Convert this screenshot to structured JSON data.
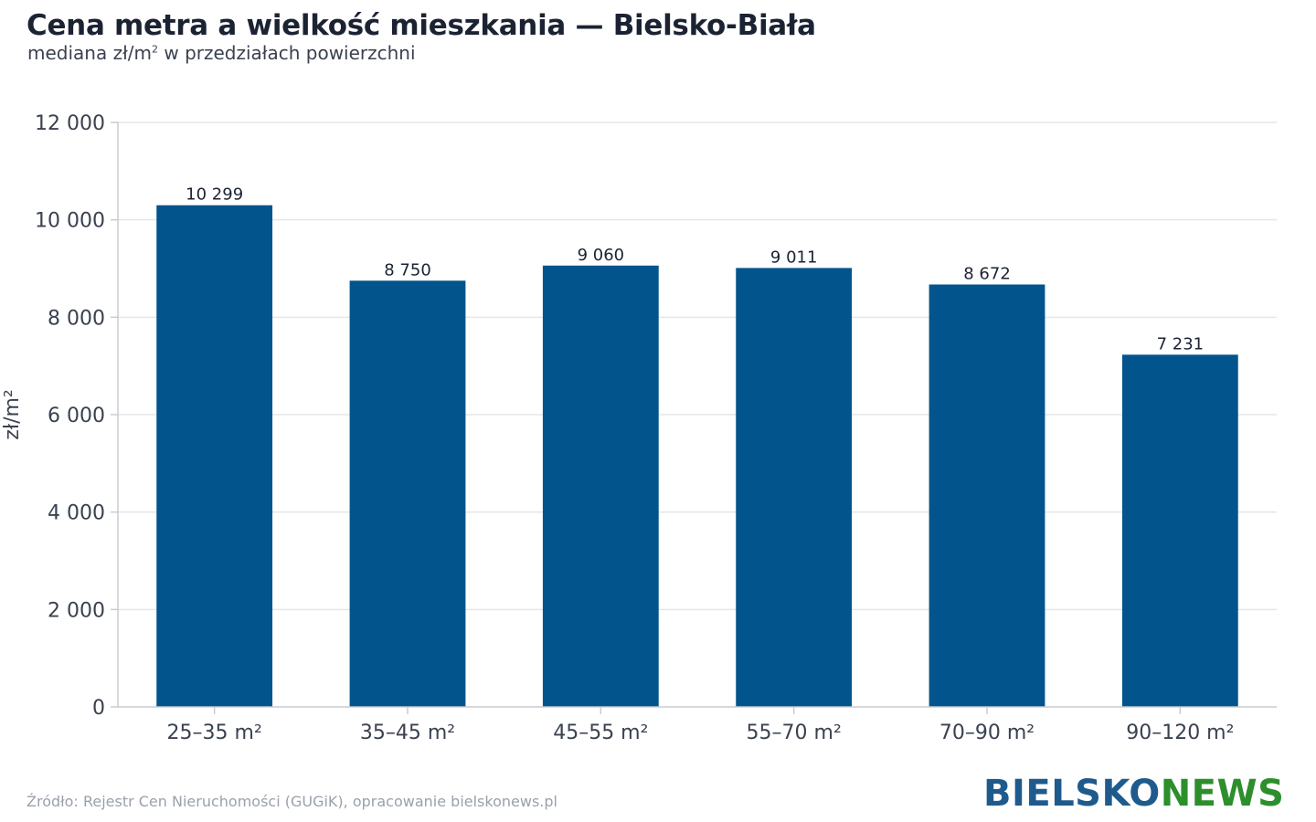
{
  "page": {
    "title": "Cena metra a wielkość mieszkania — Bielsko-Biała",
    "subtitle_pre": "mediana zł/m",
    "subtitle_sup": "2",
    "subtitle_post": " w przedziałach powierzchni",
    "source": "Źródło: Rejestr Cen Nieruchomości (GUGiK), opracowanie bielskonews.pl",
    "logo_part1": "BIELSKO",
    "logo_part2": "NEWS"
  },
  "chart_data": {
    "type": "bar",
    "title": "Cena metra a wielkość mieszkania — Bielsko-Biała",
    "subtitle": "mediana zł/m² w przedziałach powierzchni",
    "ylabel": "zł/m²",
    "xlabel": "",
    "categories": [
      "25–35 m²",
      "35–45 m²",
      "45–55 m²",
      "55–70 m²",
      "70–90 m²",
      "90–120 m²"
    ],
    "values": [
      10299,
      8750,
      9060,
      9011,
      8672,
      7231
    ],
    "value_labels": [
      "10 299",
      "8 750",
      "9 060",
      "9 011",
      "8 672",
      "7 231"
    ],
    "ylim": [
      0,
      12000
    ],
    "yticks": [
      0,
      2000,
      4000,
      6000,
      8000,
      10000,
      12000
    ],
    "ytick_labels": [
      "0",
      "2 000",
      "4 000",
      "6 000",
      "8 000",
      "10 000",
      "12 000"
    ],
    "grid": true,
    "legend": "none",
    "colors": {
      "bar": "#02548c",
      "grid": "#e3e6ea",
      "axis": "#c8ccd2"
    }
  }
}
